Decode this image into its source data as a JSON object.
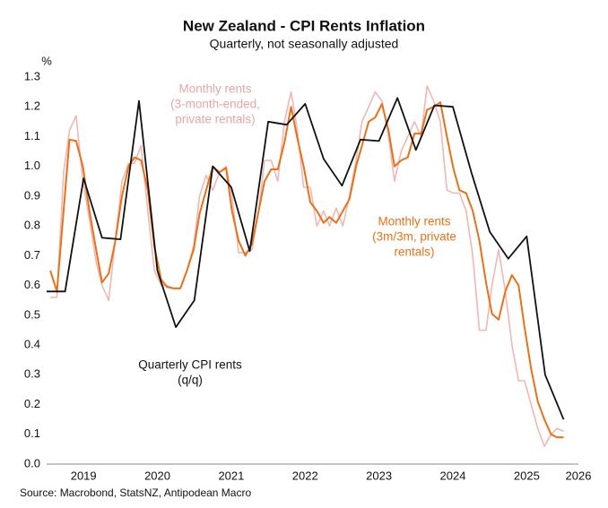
{
  "chart_data": {
    "type": "line",
    "title": "New Zealand - CPI Rents Inflation",
    "subtitle": "Quarterly, not seasonally adjusted",
    "y_unit": "%",
    "source": "Source: Macrobond, StatsNZ, Antipodean Macro",
    "xlim": [
      2019,
      2026.2
    ],
    "xticks": [
      {
        "value": 2019.5,
        "label": "2019"
      },
      {
        "value": 2020.5,
        "label": "2020"
      },
      {
        "value": 2021.5,
        "label": "2021"
      },
      {
        "value": 2022.5,
        "label": "2022"
      },
      {
        "value": 2023.5,
        "label": "2023"
      },
      {
        "value": 2024.5,
        "label": "2024"
      },
      {
        "value": 2025.5,
        "label": "2025"
      },
      {
        "value": 2026.2,
        "label": "2026"
      }
    ],
    "ylim": [
      0,
      1.3
    ],
    "yticks": [
      {
        "value": 0,
        "label": "0.0"
      },
      0.1,
      0.2,
      0.3,
      0.4,
      0.5,
      0.6,
      0.7,
      0.8,
      0.9,
      {
        "value": 1,
        "label": "1.0"
      },
      1.1,
      1.2,
      1.3
    ],
    "grid": false,
    "series": [
      {
        "color": "#f0b7b4",
        "width": 1.6,
        "x": [
          2019.05,
          2019.14,
          2019.23,
          2019.31,
          2019.4,
          2019.49,
          2019.58,
          2019.67,
          2019.75,
          2019.84,
          2019.93,
          2020.02,
          2020.11,
          2020.19,
          2020.28,
          2020.37,
          2020.46,
          2020.55,
          2020.63,
          2020.72,
          2020.81,
          2020.9,
          2020.99,
          2021.07,
          2021.16,
          2021.25,
          2021.34,
          2021.43,
          2021.51,
          2021.6,
          2021.69,
          2021.78,
          2021.87,
          2021.95,
          2022.04,
          2022.13,
          2022.22,
          2022.31,
          2022.39,
          2022.48,
          2022.57,
          2022.66,
          2022.75,
          2022.83,
          2022.92,
          2023.01,
          2023.1,
          2023.19,
          2023.27,
          2023.36,
          2023.45,
          2023.54,
          2023.63,
          2023.71,
          2023.8,
          2023.89,
          2023.98,
          2024.07,
          2024.15,
          2024.24,
          2024.33,
          2024.42,
          2024.51,
          2024.59,
          2024.68,
          2024.77,
          2024.86,
          2024.95,
          2025.03,
          2025.12,
          2025.21,
          2025.3,
          2025.39,
          2025.47,
          2025.56,
          2025.65,
          2025.74,
          2025.83,
          2025.91,
          2026.0
        ],
        "values": [
          0.56,
          0.56,
          0.98,
          1.12,
          1.17,
          0.95,
          0.82,
          0.68,
          0.6,
          0.55,
          0.75,
          0.95,
          1.01,
          1.01,
          1.07,
          0.85,
          0.65,
          0.6,
          0.6,
          0.59,
          0.59,
          0.65,
          0.73,
          0.9,
          0.97,
          0.92,
          0.98,
          1.0,
          0.9,
          0.71,
          0.71,
          0.72,
          0.85,
          1.02,
          1.02,
          0.95,
          1.15,
          1.25,
          1.13,
          0.93,
          0.93,
          0.8,
          0.85,
          0.8,
          0.86,
          0.8,
          0.9,
          1.02,
          1.15,
          1.2,
          1.25,
          1.22,
          1.1,
          0.95,
          1.05,
          1.1,
          1.15,
          1.1,
          1.27,
          1.22,
          1.15,
          0.92,
          0.91,
          0.91,
          0.85,
          0.7,
          0.45,
          0.45,
          0.6,
          0.72,
          0.58,
          0.4,
          0.28,
          0.28,
          0.2,
          0.12,
          0.06,
          0.1,
          0.12,
          0.11
        ]
      },
      {
        "color": "#e8711a",
        "width": 2,
        "x": [
          2019.05,
          2019.14,
          2019.23,
          2019.31,
          2019.4,
          2019.49,
          2019.58,
          2019.67,
          2019.75,
          2019.84,
          2019.93,
          2020.02,
          2020.11,
          2020.19,
          2020.28,
          2020.37,
          2020.46,
          2020.55,
          2020.63,
          2020.72,
          2020.81,
          2020.9,
          2020.99,
          2021.07,
          2021.16,
          2021.25,
          2021.34,
          2021.43,
          2021.51,
          2021.6,
          2021.69,
          2021.78,
          2021.87,
          2021.95,
          2022.04,
          2022.13,
          2022.22,
          2022.31,
          2022.39,
          2022.48,
          2022.57,
          2022.66,
          2022.75,
          2022.83,
          2022.92,
          2023.01,
          2023.1,
          2023.19,
          2023.27,
          2023.36,
          2023.45,
          2023.54,
          2023.63,
          2023.71,
          2023.8,
          2023.89,
          2023.98,
          2024.07,
          2024.15,
          2024.24,
          2024.33,
          2024.42,
          2024.51,
          2024.59,
          2024.68,
          2024.77,
          2024.86,
          2024.95,
          2025.03,
          2025.12,
          2025.21,
          2025.3,
          2025.39,
          2025.47,
          2025.56,
          2025.65,
          2025.74,
          2025.83,
          2025.91,
          2026.0
        ],
        "values": [
          0.65,
          0.58,
          0.85,
          1.09,
          1.085,
          1.0,
          0.85,
          0.72,
          0.61,
          0.64,
          0.75,
          0.9,
          1.0,
          1.03,
          1.02,
          0.92,
          0.73,
          0.62,
          0.595,
          0.59,
          0.59,
          0.65,
          0.72,
          0.84,
          0.92,
          1.0,
          0.98,
          0.995,
          0.85,
          0.75,
          0.7,
          0.74,
          0.85,
          0.95,
          0.99,
          0.99,
          1.08,
          1.2,
          1.1,
          1.0,
          0.88,
          0.85,
          0.81,
          0.83,
          0.81,
          0.85,
          0.89,
          1.0,
          1.07,
          1.15,
          1.165,
          1.21,
          1.12,
          1.0,
          1.02,
          1.03,
          1.11,
          1.11,
          1.19,
          1.2,
          1.215,
          1.1,
          0.99,
          0.92,
          0.91,
          0.85,
          0.75,
          0.61,
          0.505,
          0.485,
          0.58,
          0.635,
          0.6,
          0.46,
          0.32,
          0.21,
          0.15,
          0.1,
          0.09,
          0.09
        ]
      },
      {
        "color": "#111111",
        "width": 1.8,
        "x": [
          2019.0,
          2019.25,
          2019.5,
          2019.75,
          2020.0,
          2020.25,
          2020.5,
          2020.75,
          2021.0,
          2021.25,
          2021.5,
          2021.75,
          2022.0,
          2022.25,
          2022.5,
          2022.75,
          2023.0,
          2023.25,
          2023.5,
          2023.75,
          2024.0,
          2024.25,
          2024.5,
          2024.75,
          2025.0,
          2025.25,
          2025.5,
          2025.75,
          2026.0
        ],
        "values": [
          0.58,
          0.58,
          0.96,
          0.76,
          0.755,
          1.22,
          0.65,
          0.46,
          0.55,
          1.0,
          0.93,
          0.715,
          1.15,
          1.14,
          1.21,
          1.025,
          0.935,
          1.09,
          1.085,
          1.23,
          1.055,
          1.205,
          1.2,
          0.98,
          0.78,
          0.69,
          0.765,
          0.3,
          0.15
        ]
      }
    ],
    "annotations": [
      {
        "lines": [
          "Monthly rents",
          "(3-month-ended,",
          "private rentals)"
        ],
        "color": "#e6a7a4"
      },
      {
        "lines": [
          "Monthly rents",
          "(3m/3m, private",
          "rentals)"
        ],
        "color": "#e8711a"
      },
      {
        "lines": [
          "Quarterly CPI rents",
          "(q/q)"
        ],
        "color": "#111111"
      }
    ]
  }
}
